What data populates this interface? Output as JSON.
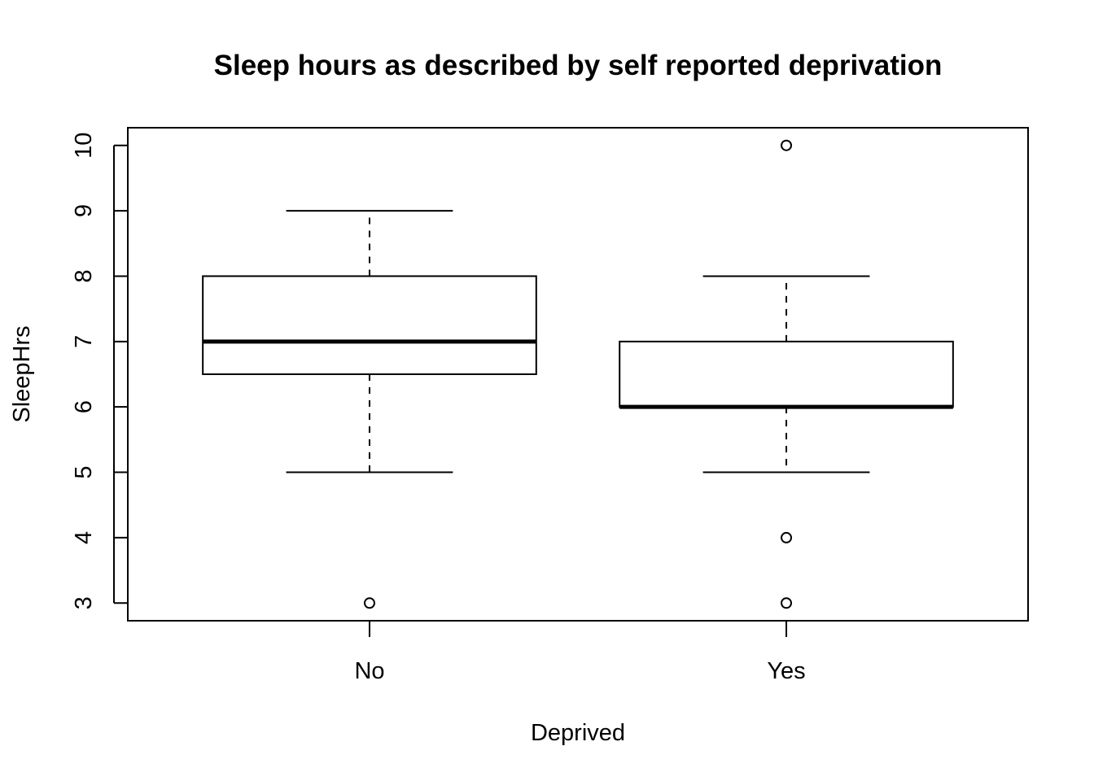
{
  "chart_data": {
    "type": "boxplot",
    "title": "Sleep hours as described by self reported deprivation",
    "xlabel": "Deprived",
    "ylabel": "SleepHrs",
    "categories": [
      "No",
      "Yes"
    ],
    "ylim": [
      2.73,
      10.27
    ],
    "yticks": [
      3,
      4,
      5,
      6,
      7,
      8,
      9,
      10
    ],
    "ytick_labels": [
      "3",
      "4",
      "5",
      "6",
      "7",
      "8",
      "9",
      "10"
    ],
    "boxes": [
      {
        "name": "No",
        "whisker_low": 5,
        "q1": 6.5,
        "median": 7,
        "q3": 8,
        "whisker_high": 9,
        "outliers": [
          3
        ]
      },
      {
        "name": "Yes",
        "whisker_low": 5,
        "q1": 6,
        "median": 6,
        "q3": 7,
        "whisker_high": 8,
        "outliers": [
          10,
          4,
          3
        ]
      }
    ]
  }
}
